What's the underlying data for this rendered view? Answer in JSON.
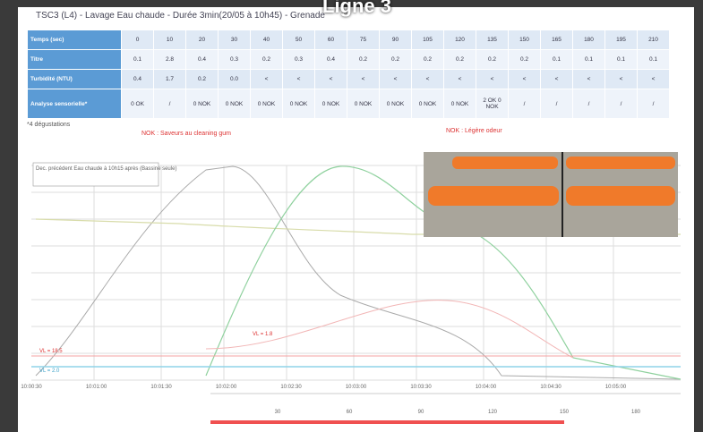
{
  "header": {
    "title": "TSC3 (L4) - Lavage Eau chaude - Durée 3min(20/05 à 10h45) - Grenade",
    "overlay": "Ligne 3"
  },
  "table": {
    "rows": [
      [
        "Temps (sec)",
        "0",
        "10",
        "20",
        "30",
        "40",
        "50",
        "60",
        "75",
        "90",
        "105",
        "120",
        "135",
        "150",
        "165",
        "180",
        "195",
        "210"
      ],
      [
        "Titre",
        "0.1",
        "2.8",
        "0.4",
        "0.3",
        "0.2",
        "0.3",
        "0.4",
        "0.2",
        "0.2",
        "0.2",
        "0.2",
        "0.2",
        "0.2",
        "0.1",
        "0.1",
        "0.1",
        "0.1"
      ],
      [
        "Turbidité (NTU)",
        "0.4",
        "1.7",
        "0.2",
        "0.0",
        "<",
        "<",
        "<",
        "<",
        "<",
        "<",
        "<",
        "<",
        "<",
        "<",
        "<",
        "<",
        "<"
      ],
      [
        "Analyse sensorielle*",
        "0 OK",
        "/",
        "0 NOK",
        "0 NOK",
        "0 NOK",
        "0 NOK",
        "0 NOK",
        "0 NOK",
        "0 NOK",
        "0 NOK",
        "0 NOK",
        "2 OK 0 NOK",
        "/",
        "/",
        "/",
        "/",
        "/"
      ]
    ],
    "footnote": "*4 dégustations"
  },
  "notes": [
    "NOK : Saveurs au cleaning gum",
    "NOK : Légère odeur"
  ],
  "chart": {
    "legend": "Dec. précédent Eau chaude à 10h15 après (Bassine seule)",
    "labels": [
      "VL = 18.5",
      "VL = 2.0",
      "VL = 1.8"
    ],
    "time_ticks": [
      "10:00:30",
      "10:01:00",
      "10:01:30",
      "10:02:00",
      "10:02:30",
      "10:03:00",
      "10:03:30",
      "10:04:00",
      "10:04:30",
      "10:05:00"
    ],
    "sec_ticks": [
      "30",
      "60",
      "90",
      "120",
      "150",
      "180"
    ]
  }
}
